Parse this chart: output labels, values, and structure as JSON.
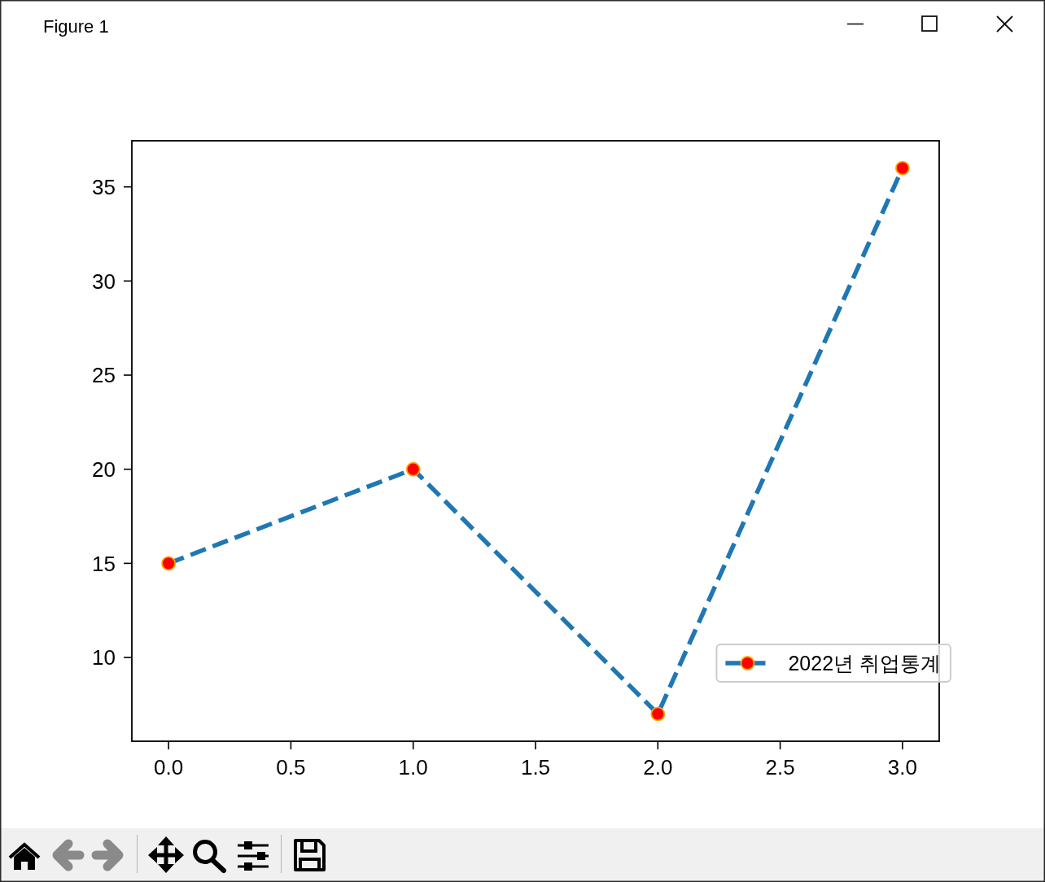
{
  "chart_data": {
    "type": "line",
    "x": [
      0,
      1,
      2,
      3
    ],
    "series": [
      {
        "name": "2022년 취업통계",
        "color": "#1f77b4",
        "colors": [
          "#ff0000",
          "#ff0000",
          "#ff0000",
          "#ff0000"
        ],
        "values": [
          15,
          20,
          7,
          36
        ]
      }
    ],
    "xlim": [
      -0.15,
      3.15
    ],
    "ylim": [
      5.55,
      37.45
    ],
    "xticks": [
      {
        "value": 0,
        "label": "0.0"
      },
      {
        "value": 0.5,
        "label": "0.5"
      },
      {
        "value": 1,
        "label": "1.0"
      },
      {
        "value": 1.5,
        "label": "1.5"
      },
      {
        "value": 2,
        "label": "2.0"
      },
      {
        "value": 2.5,
        "label": "2.5"
      },
      {
        "value": 3,
        "label": "3.0"
      }
    ],
    "yticks": [
      10,
      15,
      20,
      25,
      30,
      35
    ],
    "legend": "bottom right",
    "marker": "circle",
    "line_style": "dashed",
    "annotations": [
      "Figure 1"
    ]
  }
}
